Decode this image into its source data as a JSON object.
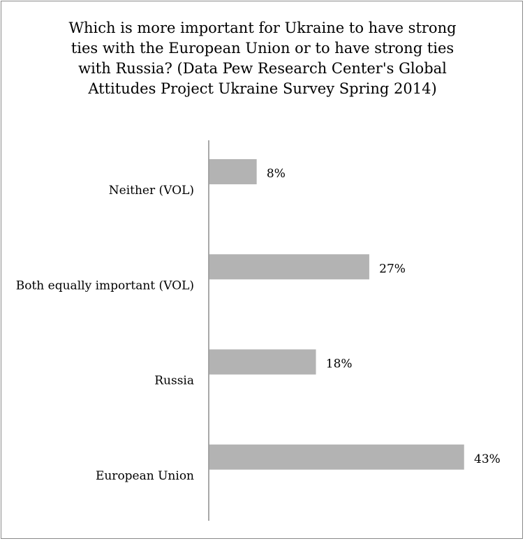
{
  "chart_data": {
    "type": "bar",
    "orientation": "horizontal",
    "title": "Which is more important for Ukraine to have strong ties with the European Union or to have strong ties with Russia? (Data  Pew Research Center's Global Attitudes Project Ukraine Survey Spring 2014)",
    "title_lines": [
      "Which is more important for Ukraine to have strong",
      "ties with the European Union or to have strong ties",
      "with Russia? (Data  Pew Research Center's Global",
      "Attitudes Project Ukraine Survey Spring 2014)"
    ],
    "categories": [
      "Neither (VOL)",
      "Both equally important (VOL)",
      "Russia",
      "European Union"
    ],
    "values": [
      8,
      27,
      18,
      43
    ],
    "value_labels": [
      "8%",
      "27%",
      "18%",
      "43%"
    ],
    "xlim": [
      0,
      50
    ],
    "grid": false,
    "legend": "none",
    "bar_color": "#b3b3b3",
    "axis_color": "#8c8c8c"
  }
}
